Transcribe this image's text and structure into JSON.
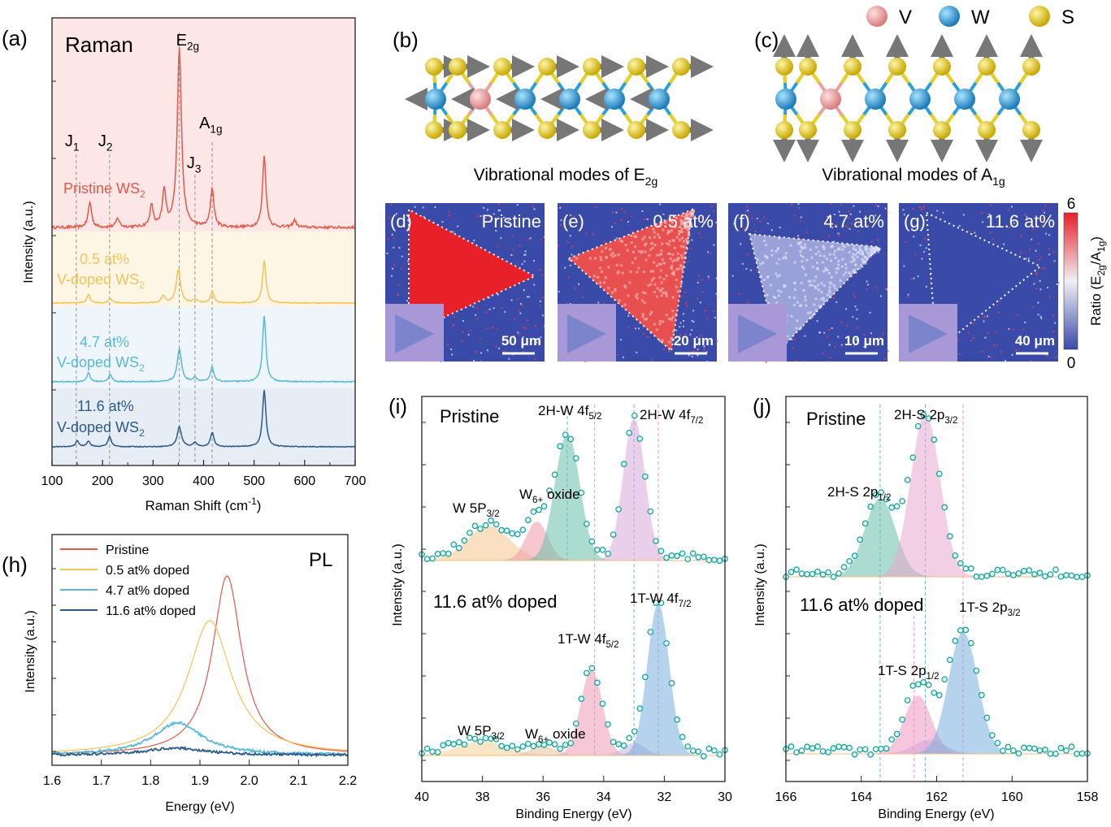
{
  "legend_atoms": [
    {
      "label": "V",
      "color": "#e8a0a0"
    },
    {
      "label": "W",
      "color": "#2aa0d8"
    },
    {
      "label": "S",
      "color": "#e8d020"
    }
  ],
  "colors": {
    "pristine": "#e05a4a",
    "doped_05": "#f2c25a",
    "doped_47": "#5ab8d8",
    "doped_116": "#2a5a8a",
    "map_low": "#3a4aa8",
    "map_high": "#e8202a",
    "xps_points": "#1aa39a"
  },
  "panel_b": {
    "label": "(b)",
    "caption_main": "Vibrational modes of E",
    "caption_sub": "2g"
  },
  "panel_c": {
    "label": "(c)",
    "caption_main": "Vibrational modes of A",
    "caption_sub": "1g"
  },
  "maps": {
    "colorbar": {
      "max": "6",
      "min": "0",
      "label_main": "Ratio (E",
      "label_sub1": "2g",
      "label_mid": "/A",
      "label_sub2": "1g",
      "label_end": ")"
    },
    "panels": [
      {
        "label": "(d)",
        "title": "Pristine",
        "scale": "50 μm",
        "ratio_level": 0.95
      },
      {
        "label": "(e)",
        "title": "0.5 at%",
        "scale": "20 μm",
        "ratio_level": 0.8
      },
      {
        "label": "(f)",
        "title": "4.7 at%",
        "scale": "10 μm",
        "ratio_level": 0.35
      },
      {
        "label": "(g)",
        "title": "11.6 at%",
        "scale": "40 μm",
        "ratio_level": 0.02
      }
    ]
  },
  "chart_data": [
    {
      "panel": "(a)",
      "type": "line",
      "title": "Raman",
      "xlabel": "Raman Shift (cm",
      "xlabel_sup": "-1",
      "xlabel_end": ")",
      "ylabel": "Intensity (a.u.)",
      "xlim": [
        100,
        700
      ],
      "xticks": [
        "100",
        "200",
        "300",
        "400",
        "500",
        "600",
        "700"
      ],
      "peak_labels": [
        {
          "main": "E",
          "sub": "2g",
          "x": 352
        },
        {
          "main": "A",
          "sub": "1g",
          "x": 417
        },
        {
          "main": "J",
          "sub": "1",
          "x": 148
        },
        {
          "main": "J",
          "sub": "2",
          "x": 214
        },
        {
          "main": "J",
          "sub": "3",
          "x": 383
        }
      ],
      "series": [
        {
          "name_line1": "",
          "name_line2": "Pristine WS",
          "name_sub": "2",
          "peaks": [
            [
              352,
              1.0
            ],
            [
              417,
              0.22
            ],
            [
              520,
              0.4
            ],
            [
              175,
              0.14
            ],
            [
              230,
              0.05
            ],
            [
              297,
              0.12
            ],
            [
              322,
              0.2
            ],
            [
              580,
              0.04
            ]
          ]
        },
        {
          "name_line1": "0.5 at%",
          "name_line2": "V-doped WS",
          "name_sub": "2",
          "peaks": [
            [
              350,
              0.55
            ],
            [
              417,
              0.18
            ],
            [
              520,
              0.7
            ],
            [
              172,
              0.14
            ],
            [
              215,
              0.07
            ],
            [
              320,
              0.12
            ],
            [
              383,
              0.06
            ]
          ]
        },
        {
          "name_line1": "4.7 at%",
          "name_line2": "V-doped WS",
          "name_sub": "2",
          "peaks": [
            [
              352,
              0.45
            ],
            [
              417,
              0.2
            ],
            [
              520,
              0.9
            ],
            [
              172,
              0.12
            ],
            [
              215,
              0.1
            ],
            [
              383,
              0.06
            ]
          ]
        },
        {
          "name_line1": "11.6 at%",
          "name_line2": "V-doped WS",
          "name_sub": "2",
          "peaks": [
            [
              352,
              0.35
            ],
            [
              417,
              0.25
            ],
            [
              520,
              1.0
            ],
            [
              150,
              0.1
            ],
            [
              172,
              0.1
            ],
            [
              214,
              0.18
            ],
            [
              383,
              0.08
            ]
          ]
        }
      ]
    },
    {
      "panel": "(h)",
      "type": "line",
      "title": "PL",
      "xlabel": "Energy (eV)",
      "ylabel": "Intensity (a.u.)",
      "xlim": [
        1.6,
        2.2
      ],
      "xticks": [
        "1.6",
        "1.7",
        "1.8",
        "1.9",
        "2.0",
        "2.1",
        "2.2"
      ],
      "series": [
        {
          "name": "Pristine",
          "center": 1.955,
          "amplitude": 1.0,
          "width": 0.06
        },
        {
          "name": "0.5 at% doped",
          "center": 1.92,
          "amplitude": 0.75,
          "width": 0.09
        },
        {
          "name": "4.7 at% doped",
          "center": 1.855,
          "amplitude": 0.18,
          "width": 0.1
        },
        {
          "name": "11.6 at% doped",
          "center": 1.85,
          "amplitude": 0.04,
          "width": 0.12
        }
      ]
    },
    {
      "panel": "(i)",
      "type": "scatter",
      "xlabel": "Binding Energy (eV)",
      "ylabel": "Intensity (a.u.)",
      "xlim": [
        40,
        30
      ],
      "xticks": [
        "40",
        "38",
        "36",
        "34",
        "32",
        "30"
      ],
      "upper_title": "Pristine",
      "lower_title": "11.6 at% doped",
      "upper_components": [
        {
          "label_main": "W 5P",
          "label_sub": "3/2",
          "center": 37.8,
          "amplitude": 0.22,
          "width": 0.7
        },
        {
          "label_main": "W",
          "label_sub": "6+",
          "label_end": " oxide",
          "center": 36.2,
          "amplitude": 0.25,
          "width": 0.35
        },
        {
          "label_main": "2H-W 4f",
          "label_sub": "5/2",
          "center": 35.2,
          "amplitude": 0.82,
          "width": 0.4
        },
        {
          "label_main": "2H-W 4f",
          "label_sub": "7/2",
          "center": 33.0,
          "amplitude": 0.92,
          "width": 0.35
        }
      ],
      "lower_components": [
        {
          "label_main": "W 5P",
          "label_sub": "3/2",
          "center": 38.0,
          "amplitude": 0.09,
          "width": 0.8
        },
        {
          "label_main": "W",
          "label_sub": "6+",
          "label_end": " oxide",
          "center": 36.0,
          "amplitude": 0.06,
          "width": 0.4
        },
        {
          "label_main": "1T-W 4f",
          "label_sub": "5/2",
          "center": 34.4,
          "amplitude": 0.55,
          "width": 0.35
        },
        {
          "label_main": "",
          "label_sub": "",
          "center": 33.0,
          "amplitude": 0.08,
          "width": 0.35
        },
        {
          "label_main": "1T-W 4f",
          "label_sub": "7/2",
          "center": 32.2,
          "amplitude": 0.98,
          "width": 0.35
        }
      ],
      "reference_lines": [
        35.2,
        34.3,
        33.0,
        32.2
      ]
    },
    {
      "panel": "(j)",
      "type": "scatter",
      "xlabel": "Binding Energy (eV)",
      "ylabel": "Intensity (a.u.)",
      "xlim": [
        166,
        158
      ],
      "xticks": [
        "166",
        "164",
        "162",
        "160",
        "158"
      ],
      "upper_title": "Pristine",
      "lower_title": "11.6 at% doped",
      "upper_components": [
        {
          "label_main": "2H-S 2p",
          "label_sub": "1/2",
          "center": 163.5,
          "amplitude": 0.48,
          "width": 0.4
        },
        {
          "label_main": "2H-S 2p",
          "label_sub": "3/2",
          "center": 162.3,
          "amplitude": 1.0,
          "width": 0.38
        }
      ],
      "lower_components": [
        {
          "label_main": "1T-S 2p",
          "label_sub": "1/2",
          "center": 162.5,
          "amplitude": 0.42,
          "width": 0.35
        },
        {
          "label_main": "",
          "label_sub": "",
          "center": 162.2,
          "amplitude": 0.1,
          "width": 0.4
        },
        {
          "label_main": "1T-S 2p",
          "label_sub": "3/2",
          "center": 161.3,
          "amplitude": 0.88,
          "width": 0.38
        }
      ],
      "reference_lines": [
        163.5,
        162.6,
        162.3,
        161.3
      ]
    }
  ],
  "panel_labels": {
    "a": "(a)",
    "h": "(h)",
    "i": "(i)",
    "j": "(j)"
  }
}
